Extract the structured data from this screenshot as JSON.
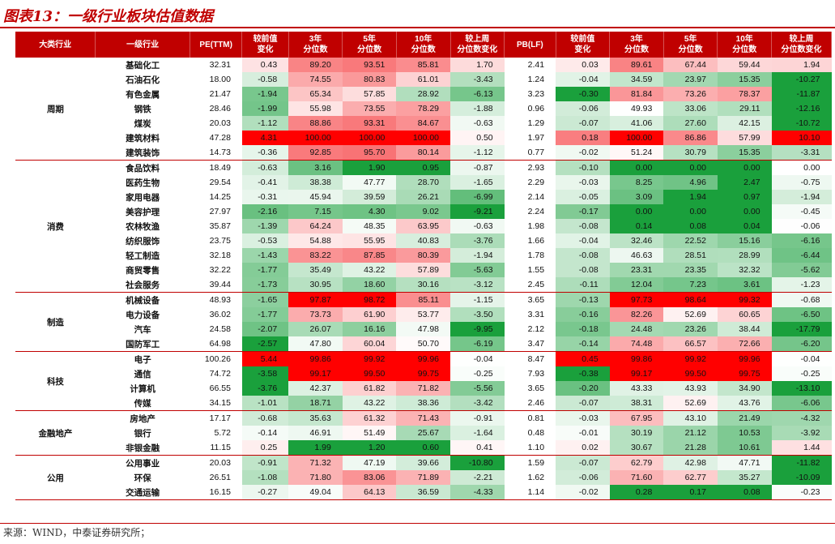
{
  "title": "图表13：一级行业板块估值数据",
  "source": "来源：WIND，中泰证券研究所；",
  "headers": [
    "大类行业",
    "一级行业",
    "PE(TTM)",
    "较前值\n变化",
    "3年\n分位数",
    "5年\n分位数",
    "10年\n分位数",
    "较上周\n分位数变化",
    "PB(LF)",
    "较前值\n变化",
    "3年\n分位数",
    "5年\n分位数",
    "10年\n分位数",
    "较上周\n分位数变化"
  ],
  "groups": [
    {
      "name": "周期",
      "rows": [
        [
          "基础化工",
          "32.31",
          "0.43",
          "89.20",
          "93.51",
          "85.81",
          "1.70",
          "2.41",
          "0.03",
          "89.61",
          "67.44",
          "59.44",
          "1.94"
        ],
        [
          "石油石化",
          "18.00",
          "-0.58",
          "74.55",
          "80.83",
          "61.01",
          "-3.43",
          "1.24",
          "-0.04",
          "34.59",
          "23.97",
          "15.35",
          "-10.27"
        ],
        [
          "有色金属",
          "21.47",
          "-1.94",
          "65.34",
          "57.85",
          "28.92",
          "-6.13",
          "3.23",
          "-0.30",
          "81.84",
          "73.26",
          "78.37",
          "-11.87"
        ],
        [
          "钢铁",
          "28.46",
          "-1.99",
          "55.98",
          "73.55",
          "78.29",
          "-1.88",
          "0.96",
          "-0.06",
          "49.93",
          "33.06",
          "29.11",
          "-12.16"
        ],
        [
          "煤炭",
          "20.03",
          "-1.12",
          "88.86",
          "93.31",
          "84.67",
          "-0.63",
          "1.29",
          "-0.07",
          "41.06",
          "27.60",
          "42.15",
          "-10.72"
        ],
        [
          "建筑材料",
          "47.28",
          "4.31",
          "100.00",
          "100.00",
          "100.00",
          "0.50",
          "1.97",
          "0.18",
          "100.00",
          "86.86",
          "57.99",
          "10.10"
        ],
        [
          "建筑装饰",
          "14.73",
          "-0.36",
          "92.85",
          "95.70",
          "80.14",
          "-1.12",
          "0.77",
          "-0.02",
          "51.24",
          "30.79",
          "15.35",
          "-3.31"
        ]
      ]
    },
    {
      "name": "消费",
      "rows": [
        [
          "食品饮料",
          "18.49",
          "-0.63",
          "3.16",
          "1.90",
          "0.95",
          "-0.87",
          "2.93",
          "-0.10",
          "0.00",
          "0.00",
          "0.00",
          "0.00"
        ],
        [
          "医药生物",
          "29.54",
          "-0.41",
          "38.38",
          "47.77",
          "28.70",
          "-1.65",
          "2.29",
          "-0.03",
          "8.25",
          "4.96",
          "2.47",
          "-0.75"
        ],
        [
          "家用电器",
          "14.25",
          "-0.31",
          "45.94",
          "39.59",
          "26.21",
          "-6.99",
          "2.14",
          "-0.05",
          "3.09",
          "1.94",
          "0.97",
          "-1.94"
        ],
        [
          "美容护理",
          "27.97",
          "-2.16",
          "7.15",
          "4.30",
          "9.02",
          "-9.21",
          "2.24",
          "-0.17",
          "0.00",
          "0.00",
          "0.00",
          "-0.45"
        ],
        [
          "农林牧渔",
          "35.87",
          "-1.39",
          "64.24",
          "48.35",
          "63.95",
          "-0.63",
          "1.98",
          "-0.08",
          "0.14",
          "0.08",
          "0.04",
          "-0.06"
        ],
        [
          "纺织服饰",
          "23.75",
          "-0.53",
          "54.88",
          "55.95",
          "40.83",
          "-3.76",
          "1.66",
          "-0.04",
          "32.46",
          "22.52",
          "15.16",
          "-6.16"
        ],
        [
          "轻工制造",
          "32.18",
          "-1.43",
          "83.22",
          "87.85",
          "80.39",
          "-1.94",
          "1.78",
          "-0.08",
          "46.63",
          "28.51",
          "28.99",
          "-6.44"
        ],
        [
          "商贸零售",
          "32.22",
          "-1.77",
          "35.49",
          "43.22",
          "57.89",
          "-5.63",
          "1.55",
          "-0.08",
          "23.31",
          "23.35",
          "32.32",
          "-5.62"
        ],
        [
          "社会服务",
          "39.44",
          "-1.73",
          "30.95",
          "18.60",
          "30.16",
          "-3.12",
          "2.45",
          "-0.11",
          "12.04",
          "7.23",
          "3.61",
          "-1.23"
        ]
      ]
    },
    {
      "name": "制造",
      "rows": [
        [
          "机械设备",
          "48.93",
          "-1.65",
          "97.87",
          "98.72",
          "85.11",
          "-1.15",
          "3.65",
          "-0.13",
          "97.73",
          "98.64",
          "99.32",
          "-0.68"
        ],
        [
          "电力设备",
          "36.02",
          "-1.77",
          "73.73",
          "61.90",
          "53.77",
          "-3.50",
          "3.31",
          "-0.16",
          "82.26",
          "52.69",
          "60.65",
          "-6.50"
        ],
        [
          "汽车",
          "24.58",
          "-2.07",
          "26.07",
          "16.16",
          "47.98",
          "-9.95",
          "2.12",
          "-0.18",
          "24.48",
          "23.26",
          "38.44",
          "-17.79"
        ],
        [
          "国防军工",
          "64.98",
          "-2.57",
          "47.80",
          "60.04",
          "50.70",
          "-6.19",
          "3.47",
          "-0.14",
          "74.48",
          "66.57",
          "72.66",
          "-6.20"
        ]
      ]
    },
    {
      "name": "科技",
      "rows": [
        [
          "电子",
          "100.26",
          "5.44",
          "99.86",
          "99.92",
          "99.96",
          "-0.04",
          "8.47",
          "0.45",
          "99.86",
          "99.92",
          "99.96",
          "-0.04"
        ],
        [
          "通信",
          "74.72",
          "-3.58",
          "99.17",
          "99.50",
          "99.75",
          "-0.25",
          "7.93",
          "-0.38",
          "99.17",
          "99.50",
          "99.75",
          "-0.25"
        ],
        [
          "计算机",
          "66.55",
          "-3.76",
          "42.37",
          "61.82",
          "71.82",
          "-5.56",
          "3.65",
          "-0.20",
          "43.33",
          "43.93",
          "34.90",
          "-13.10"
        ],
        [
          "传媒",
          "34.15",
          "-1.01",
          "18.71",
          "43.22",
          "38.36",
          "-3.42",
          "2.46",
          "-0.07",
          "38.31",
          "52.69",
          "43.76",
          "-6.06"
        ]
      ]
    },
    {
      "name": "金融地产",
      "rows": [
        [
          "房地产",
          "17.17",
          "-0.68",
          "35.63",
          "61.32",
          "71.43",
          "-0.91",
          "0.81",
          "-0.03",
          "67.95",
          "43.10",
          "21.49",
          "-4.32"
        ],
        [
          "银行",
          "5.72",
          "-0.14",
          "46.91",
          "51.49",
          "25.67",
          "-1.64",
          "0.48",
          "-0.01",
          "30.19",
          "21.12",
          "10.53",
          "-3.92"
        ],
        [
          "非银金融",
          "11.15",
          "0.25",
          "1.99",
          "1.20",
          "0.60",
          "0.41",
          "1.10",
          "0.02",
          "30.67",
          "21.28",
          "10.61",
          "1.44"
        ]
      ]
    },
    {
      "name": "公用",
      "rows": [
        [
          "公用事业",
          "20.03",
          "-0.91",
          "71.32",
          "47.19",
          "39.66",
          "-10.80",
          "1.59",
          "-0.07",
          "62.79",
          "42.98",
          "47.71",
          "-11.82"
        ],
        [
          "环保",
          "26.51",
          "-1.08",
          "71.80",
          "83.06",
          "71.89",
          "-2.21",
          "1.62",
          "-0.06",
          "71.60",
          "62.77",
          "35.27",
          "-10.09"
        ],
        [
          "交通运输",
          "16.15",
          "-0.27",
          "49.04",
          "64.13",
          "36.59",
          "-4.33",
          "1.14",
          "-0.02",
          "0.28",
          "0.17",
          "0.08",
          "-0.23"
        ]
      ]
    }
  ]
}
